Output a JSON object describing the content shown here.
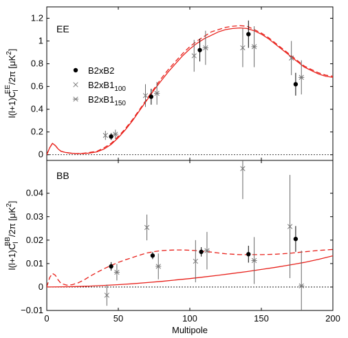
{
  "chart_data": [
    {
      "panel": "EE",
      "type": "scatter",
      "label": "EE",
      "ylabel": {
        "prefix": "l(l+1)C",
        "sub": "l",
        "sup": "EE",
        "suffix": "/2π [μK",
        "unit_sup": "2",
        "close": "]"
      },
      "xlim": [
        0,
        200
      ],
      "ylim": [
        -0.05,
        1.3
      ],
      "yticks": [
        0,
        0.2,
        0.4,
        0.6,
        0.8,
        1,
        1.2
      ],
      "ytick_labels": [
        "0",
        "0.2",
        "0.4",
        "0.6",
        "0.8",
        "1",
        "1.2"
      ],
      "zero_line": true,
      "legend": {
        "placement": "left",
        "entries": [
          {
            "marker": "dot",
            "text": "B2xB2",
            "sub": ""
          },
          {
            "marker": "cross",
            "text": "B2xB1",
            "sub": "100"
          },
          {
            "marker": "asterisk",
            "text": "B2xB1",
            "sub": "150"
          }
        ]
      },
      "series": [
        {
          "marker": "dot",
          "color": "#000000",
          "points": [
            {
              "x": 45,
              "y": 0.16,
              "err": 0.03
            },
            {
              "x": 73,
              "y": 0.51,
              "err": 0.07
            },
            {
              "x": 107,
              "y": 0.92,
              "err": 0.1
            },
            {
              "x": 141,
              "y": 1.06,
              "err": 0.12
            },
            {
              "x": 174,
              "y": 0.62,
              "err": 0.1
            }
          ]
        },
        {
          "marker": "cross",
          "color": "#777777",
          "points": [
            {
              "x": 41,
              "y": 0.17,
              "err": 0.04
            },
            {
              "x": 69,
              "y": 0.52,
              "err": 0.1
            },
            {
              "x": 103,
              "y": 0.87,
              "err": 0.14
            },
            {
              "x": 137,
              "y": 0.94,
              "err": 0.17
            },
            {
              "x": 171,
              "y": 0.85,
              "err": 0.15
            }
          ]
        },
        {
          "marker": "asterisk",
          "color": "#777777",
          "points": [
            {
              "x": 48,
              "y": 0.18,
              "err": 0.04
            },
            {
              "x": 77,
              "y": 0.54,
              "err": 0.1
            },
            {
              "x": 111,
              "y": 0.94,
              "err": 0.15
            },
            {
              "x": 145,
              "y": 0.95,
              "err": 0.18
            },
            {
              "x": 178,
              "y": 0.68,
              "err": 0.15
            }
          ]
        }
      ],
      "curves": [
        {
          "style": "solid",
          "color": "#e8201a",
          "x": [
            0,
            2,
            4,
            6,
            8,
            10,
            13,
            16,
            20,
            25,
            30,
            35,
            40,
            45,
            50,
            55,
            60,
            65,
            70,
            75,
            80,
            85,
            90,
            95,
            100,
            105,
            110,
            115,
            120,
            125,
            130,
            135,
            140,
            145,
            150,
            155,
            160,
            165,
            170,
            175,
            180,
            185,
            190,
            195,
            200
          ],
          "y": [
            0,
            0.06,
            0.1,
            0.08,
            0.05,
            0.03,
            0.02,
            0.015,
            0.01,
            0.01,
            0.015,
            0.025,
            0.05,
            0.09,
            0.15,
            0.22,
            0.3,
            0.39,
            0.48,
            0.57,
            0.65,
            0.73,
            0.8,
            0.87,
            0.93,
            0.98,
            1.02,
            1.05,
            1.08,
            1.1,
            1.11,
            1.115,
            1.11,
            1.09,
            1.06,
            1.02,
            0.97,
            0.92,
            0.87,
            0.82,
            0.77,
            0.74,
            0.71,
            0.69,
            0.68
          ]
        },
        {
          "style": "dashed",
          "color": "#e8201a",
          "x": [
            0,
            2,
            4,
            6,
            8,
            10,
            13,
            16,
            20,
            25,
            30,
            35,
            40,
            45,
            50,
            55,
            60,
            65,
            70,
            75,
            80,
            85,
            90,
            95,
            100,
            105,
            110,
            115,
            120,
            125,
            130,
            135,
            140,
            145,
            150,
            155,
            160,
            165,
            170,
            175,
            180,
            185,
            190,
            195,
            200
          ],
          "y": [
            0,
            0.06,
            0.1,
            0.08,
            0.05,
            0.03,
            0.02,
            0.015,
            0.01,
            0.012,
            0.02,
            0.03,
            0.06,
            0.1,
            0.16,
            0.23,
            0.31,
            0.4,
            0.49,
            0.58,
            0.67,
            0.75,
            0.82,
            0.89,
            0.95,
            1.0,
            1.04,
            1.08,
            1.1,
            1.12,
            1.13,
            1.135,
            1.13,
            1.1,
            1.07,
            1.03,
            0.98,
            0.93,
            0.88,
            0.83,
            0.78,
            0.75,
            0.72,
            0.7,
            0.69
          ]
        }
      ]
    },
    {
      "panel": "BB",
      "type": "scatter",
      "label": "BB",
      "ylabel": {
        "prefix": "l(l+1)C",
        "sub": "l",
        "sup": "BB",
        "suffix": "/2π [μK",
        "unit_sup": "2",
        "close": "]"
      },
      "xlabel": "Multipole",
      "xlim": [
        0,
        200
      ],
      "xticks": [
        0,
        50,
        100,
        150,
        200
      ],
      "xtick_labels": [
        "0",
        "50",
        "100",
        "150",
        "200"
      ],
      "ylim": [
        -0.01,
        0.054
      ],
      "yticks": [
        -0.01,
        0,
        0.01,
        0.02,
        0.03,
        0.04
      ],
      "ytick_labels": [
        "−0.01",
        "0",
        "0.01",
        "0.02",
        "0.03",
        "0.04"
      ],
      "zero_line": true,
      "series": [
        {
          "marker": "dot",
          "color": "#000000",
          "points": [
            {
              "x": 45,
              "y": 0.0088,
              "err": 0.0018
            },
            {
              "x": 74,
              "y": 0.0134,
              "err": 0.0015
            },
            {
              "x": 108,
              "y": 0.015,
              "err": 0.002
            },
            {
              "x": 141,
              "y": 0.014,
              "err": 0.0036
            },
            {
              "x": 174,
              "y": 0.0205,
              "err": 0.0055
            }
          ]
        },
        {
          "marker": "cross",
          "color": "#777777",
          "points": [
            {
              "x": 42,
              "y": -0.0035,
              "err": 0.0045
            },
            {
              "x": 70,
              "y": 0.0254,
              "err": 0.0055
            },
            {
              "x": 104,
              "y": 0.011,
              "err": 0.009
            },
            {
              "x": 137,
              "y": 0.0505,
              "err": 0.013
            },
            {
              "x": 170,
              "y": 0.0258,
              "err": 0.022
            }
          ]
        },
        {
          "marker": "asterisk",
          "color": "#777777",
          "points": [
            {
              "x": 49,
              "y": 0.0063,
              "err": 0.0035
            },
            {
              "x": 78,
              "y": 0.0088,
              "err": 0.0055
            },
            {
              "x": 112,
              "y": 0.0155,
              "err": 0.008
            },
            {
              "x": 145,
              "y": 0.0113,
              "err": 0.01
            },
            {
              "x": 178,
              "y": 0.0005,
              "err": 0.015
            }
          ]
        }
      ],
      "curves": [
        {
          "style": "solid",
          "color": "#e8201a",
          "x": [
            0,
            10,
            20,
            30,
            40,
            50,
            60,
            70,
            80,
            90,
            100,
            110,
            120,
            130,
            140,
            150,
            160,
            170,
            180,
            190,
            200
          ],
          "y": [
            0,
            0.0001,
            0.0002,
            0.0004,
            0.0007,
            0.001,
            0.0014,
            0.0019,
            0.0024,
            0.003,
            0.0036,
            0.0043,
            0.005,
            0.0058,
            0.0066,
            0.0075,
            0.0084,
            0.0094,
            0.0105,
            0.0118,
            0.0133
          ]
        },
        {
          "style": "dashed",
          "color": "#e8201a",
          "x": [
            0,
            2,
            4,
            6,
            8,
            10,
            14,
            18,
            22,
            26,
            30,
            35,
            40,
            45,
            50,
            55,
            60,
            65,
            70,
            75,
            80,
            85,
            90,
            95,
            100,
            105,
            110,
            115,
            120,
            125,
            130,
            135,
            140,
            145,
            150,
            155,
            160,
            165,
            170,
            175,
            180,
            185,
            190,
            195,
            200
          ],
          "y": [
            0,
            0.004,
            0.0058,
            0.005,
            0.003,
            0.0015,
            0.0008,
            0.001,
            0.0018,
            0.003,
            0.0045,
            0.0062,
            0.0078,
            0.0092,
            0.0105,
            0.0116,
            0.0126,
            0.0136,
            0.0145,
            0.0151,
            0.0155,
            0.0157,
            0.0158,
            0.0158,
            0.0157,
            0.0155,
            0.0152,
            0.0149,
            0.0145,
            0.0142,
            0.014,
            0.0138,
            0.0138,
            0.0138,
            0.0138,
            0.0139,
            0.014,
            0.0142,
            0.0144,
            0.0147,
            0.015,
            0.0153,
            0.0156,
            0.0158,
            0.016
          ]
        }
      ]
    }
  ]
}
